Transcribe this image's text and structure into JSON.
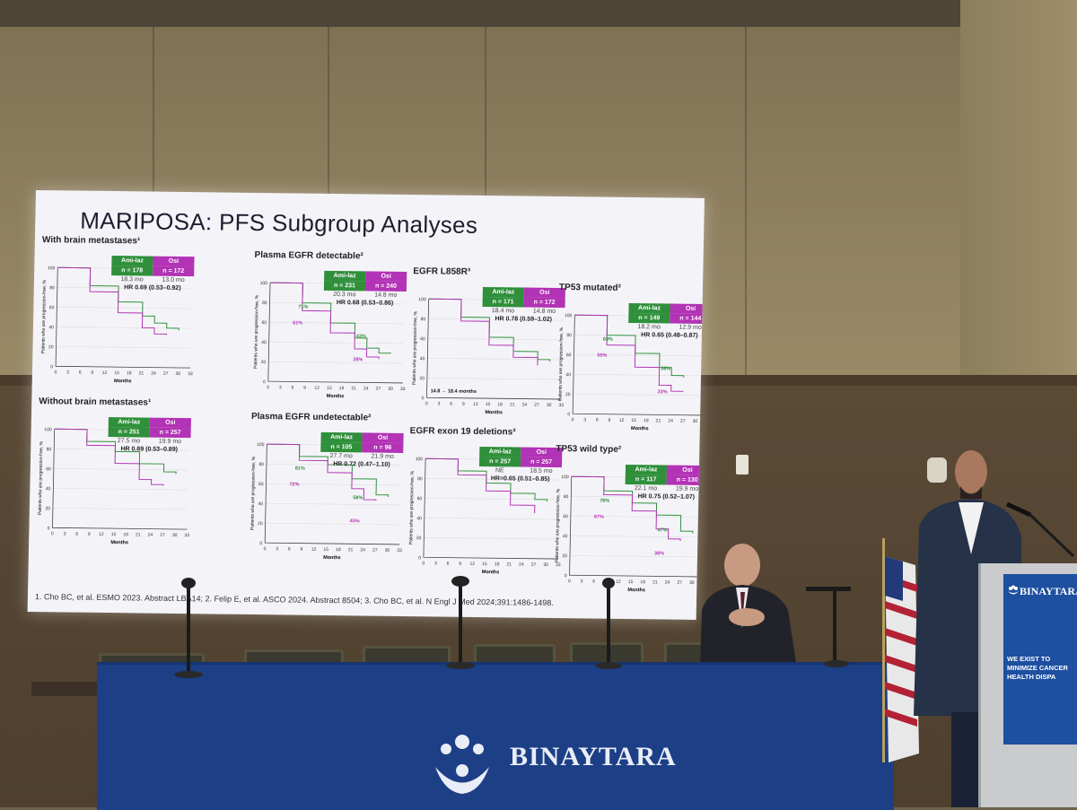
{
  "slide": {
    "title": "MARIPOSA: PFS Subgroup Analyses",
    "y_label": "Patients who are progression-free, %",
    "x_label": "Months",
    "y_ticks": [
      "100",
      "80",
      "60",
      "40",
      "20",
      "0"
    ],
    "x_ticks": [
      "0",
      "3",
      "6",
      "9",
      "12",
      "15",
      "18",
      "21",
      "24",
      "27",
      "30",
      "33"
    ],
    "footnote": "1. Cho BC, et al. ESMO 2023. Abstract LBA14; 2. Felip E, et al. ASCO 2024. Abstract 8504; 3. Cho BC, et al. N Engl J Med 2024;391:1486-1498.",
    "series_colors": {
      "ami_laz": "#2f8f3a",
      "osi": "#b233b5"
    },
    "panels": [
      {
        "title": "With brain metastases¹",
        "ami_label": "Ami-laz",
        "osi_label": "Osi",
        "ami_n": "n = 178",
        "osi_n": "n = 172",
        "ami_mo": "18.3 mo",
        "osi_mo": "13.0 mo",
        "hr": "HR 0.69 (0.53–0.92)",
        "notes": []
      },
      {
        "title": "Plasma EGFR detectable²",
        "ami_label": "Ami-laz",
        "osi_label": "Osi",
        "ami_n": "n = 231",
        "osi_n": "n = 240",
        "ami_mo": "20.3 mo",
        "osi_mo": "14.8 mo",
        "hr": "HR 0.68 (0.53–0.86)",
        "notes": [
          "71%",
          "61%",
          "43%",
          "28%"
        ]
      },
      {
        "title": "EGFR L858R³",
        "ami_label": "Ami-laz",
        "osi_label": "Osi",
        "ami_n": "n = 171",
        "osi_n": "n = 172",
        "ami_mo": "18.4 mo",
        "osi_mo": "14.8 mo",
        "hr": "HR 0.78 (0.59–1.02)",
        "notes": [
          "14.8 → 18.4 months"
        ]
      },
      {
        "title": "TP53 mutated²",
        "ami_label": "Ami-laz",
        "osi_label": "Osi",
        "ami_n": "n = 149",
        "osi_n": "n = 144",
        "ami_mo": "18.2 mo",
        "osi_mo": "12.9 mo",
        "hr": "HR 0.65 (0.48–0.87)",
        "notes": [
          "68%",
          "55%",
          "38%",
          "23%"
        ]
      },
      {
        "title": "Without brain metastases¹",
        "ami_label": "Ami-laz",
        "osi_label": "Osi",
        "ami_n": "n = 251",
        "osi_n": "n = 257",
        "ami_mo": "27.5 mo",
        "osi_mo": "19.9 mo",
        "hr": "HR 0.69 (0.53–0.89)",
        "notes": []
      },
      {
        "title": "Plasma EGFR undetectable²",
        "ami_label": "Ami-laz",
        "osi_label": "Osi",
        "ami_n": "n = 105",
        "osi_n": "n = 96",
        "ami_mo": "27.7 mo",
        "osi_mo": "21.9 mo",
        "hr": "HR 0.72 (0.47–1.10)",
        "notes": [
          "81%",
          "72%",
          "58%",
          "45%"
        ]
      },
      {
        "title": "EGFR exon 19 deletions³",
        "ami_label": "Ami-laz",
        "osi_label": "Osi",
        "ami_n": "n = 257",
        "osi_n": "n = 257",
        "ami_mo": "NE",
        "osi_mo": "18.5 mo",
        "hr": "HR=0.65 (0.51–0.85)",
        "notes": []
      },
      {
        "title": "TP53 wild type²",
        "ami_label": "Ami-laz",
        "osi_label": "Osi",
        "ami_n": "n = 117",
        "osi_n": "n = 130",
        "ami_mo": "22.1 mo",
        "osi_mo": "19.9 mo",
        "hr": "HR 0.75 (0.52–1.07)",
        "notes": [
          "76%",
          "67%",
          "47%",
          "36%"
        ]
      }
    ]
  },
  "table_banner": {
    "name": "BINAYTARA"
  },
  "podium_sign": {
    "name": "BINAYTARA",
    "slogan": "WE EXIST TO MINIMIZE CANCER HEALTH DISPA"
  }
}
